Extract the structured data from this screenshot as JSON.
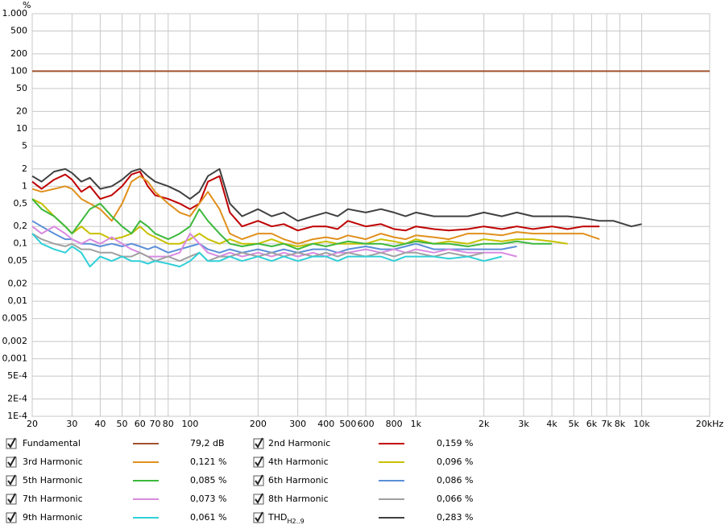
{
  "chart_data": {
    "type": "line",
    "xscale": "log",
    "yscale": "log",
    "grid": true,
    "y_label": "%",
    "xlim": [
      20,
      20000
    ],
    "ylim": [
      0.0001,
      1000
    ],
    "xticks": [
      20,
      30,
      40,
      50,
      60,
      70,
      80,
      100,
      200,
      300,
      400,
      500,
      600,
      800,
      {
        "value": 1000,
        "label": "1k"
      },
      {
        "value": 2000,
        "label": "2k"
      },
      {
        "value": 3000,
        "label": "3k"
      },
      {
        "value": 4000,
        "label": "4k"
      },
      {
        "value": 5000,
        "label": "5k"
      },
      {
        "value": 6000,
        "label": "6k"
      },
      {
        "value": 7000,
        "label": "7k"
      },
      {
        "value": 8000,
        "label": "8k"
      },
      {
        "value": 10000,
        "label": "10k"
      },
      {
        "value": 20000,
        "label": "20kHz"
      }
    ],
    "yticks": [
      {
        "value": 1000,
        "label": "1.000"
      },
      500,
      200,
      100,
      50,
      20,
      10,
      5,
      2,
      1,
      {
        "value": 0.5,
        "label": "0,5"
      },
      {
        "value": 0.2,
        "label": "0,2"
      },
      {
        "value": 0.1,
        "label": "0,1"
      },
      {
        "value": 0.05,
        "label": "0,05"
      },
      {
        "value": 0.02,
        "label": "0,02"
      },
      {
        "value": 0.01,
        "label": "0,01"
      },
      {
        "value": 0.005,
        "label": "0,005"
      },
      {
        "value": 0.002,
        "label": "0,002"
      },
      {
        "value": 0.001,
        "label": "0,001"
      },
      {
        "value": 0.0005,
        "label": "5E-4"
      },
      {
        "value": 0.0002,
        "label": "2E-4"
      },
      {
        "value": 0.0001,
        "label": "1E-4"
      }
    ],
    "x": [
      20,
      22,
      25,
      28,
      30,
      33,
      36,
      40,
      45,
      50,
      55,
      60,
      65,
      70,
      80,
      90,
      100,
      110,
      120,
      135,
      150,
      170,
      200,
      230,
      260,
      300,
      350,
      400,
      450,
      500,
      600,
      700,
      800,
      900,
      1000,
      1200,
      1400,
      1700,
      2000,
      2400,
      2800,
      3300,
      4000,
      4700,
      5500,
      6500,
      7500,
      9000,
      10000,
      20000
    ],
    "series": [
      {
        "name": "Fundamental",
        "color": "#a0522d",
        "legend_value": "79,2 dB",
        "values": [
          100,
          100,
          100,
          100,
          100,
          100,
          100,
          100,
          100,
          100,
          100,
          100,
          100,
          100,
          100,
          100,
          100,
          100,
          100,
          100,
          100,
          100,
          100,
          100,
          100,
          100,
          100,
          100,
          100,
          100,
          100,
          100,
          100,
          100,
          100,
          100,
          100,
          100,
          100,
          100,
          100,
          100,
          100,
          100,
          100,
          100,
          100,
          100,
          100,
          100
        ]
      },
      {
        "name": "2nd Harmonic",
        "color": "#c00000",
        "legend_value": "0,159 %",
        "values": [
          1.2,
          0.9,
          1.3,
          1.6,
          1.3,
          0.8,
          1.0,
          0.6,
          0.7,
          1.0,
          1.6,
          1.8,
          1.0,
          0.7,
          0.6,
          0.5,
          0.4,
          0.5,
          1.2,
          1.5,
          0.35,
          0.2,
          0.25,
          0.2,
          0.22,
          0.17,
          0.2,
          0.2,
          0.18,
          0.25,
          0.2,
          0.22,
          0.18,
          0.17,
          0.2,
          0.18,
          0.17,
          0.18,
          0.2,
          0.18,
          0.2,
          0.18,
          0.2,
          0.18,
          0.2,
          0.2,
          null,
          null,
          null,
          null
        ]
      },
      {
        "name": "3rd Harmonic",
        "color": "#e0901c",
        "legend_value": "0,121 %",
        "values": [
          0.9,
          0.8,
          0.9,
          1.0,
          0.9,
          0.6,
          0.5,
          0.4,
          0.25,
          0.5,
          1.2,
          1.5,
          1.2,
          0.8,
          0.5,
          0.35,
          0.3,
          0.5,
          0.8,
          0.4,
          0.15,
          0.12,
          0.15,
          0.15,
          0.12,
          0.1,
          0.12,
          0.13,
          0.12,
          0.14,
          0.12,
          0.15,
          0.13,
          0.12,
          0.14,
          0.13,
          0.12,
          0.15,
          0.15,
          0.14,
          0.16,
          0.15,
          0.15,
          0.15,
          0.15,
          0.12,
          null,
          null,
          null,
          null
        ]
      },
      {
        "name": "4th Harmonic",
        "color": "#c8c000",
        "legend_value": "0,096 %",
        "values": [
          0.6,
          0.5,
          0.3,
          0.2,
          0.15,
          0.2,
          0.15,
          0.15,
          0.12,
          0.13,
          0.15,
          0.2,
          0.15,
          0.13,
          0.1,
          0.1,
          0.12,
          0.15,
          0.12,
          0.1,
          0.12,
          0.1,
          0.1,
          0.12,
          0.1,
          0.09,
          0.1,
          0.11,
          0.1,
          0.1,
          0.1,
          0.12,
          0.11,
          0.1,
          0.12,
          0.1,
          0.11,
          0.1,
          0.12,
          0.11,
          0.12,
          0.12,
          0.11,
          0.1,
          null,
          null,
          null,
          null,
          null,
          null
        ]
      },
      {
        "name": "5th Harmonic",
        "color": "#3cb83c",
        "legend_value": "0,085 %",
        "values": [
          0.6,
          0.4,
          0.3,
          0.2,
          0.15,
          0.25,
          0.4,
          0.5,
          0.3,
          0.2,
          0.15,
          0.25,
          0.2,
          0.15,
          0.12,
          0.15,
          0.2,
          0.4,
          0.25,
          0.15,
          0.1,
          0.09,
          0.1,
          0.09,
          0.1,
          0.08,
          0.1,
          0.09,
          0.1,
          0.11,
          0.1,
          0.1,
          0.09,
          0.1,
          0.11,
          0.1,
          0.1,
          0.09,
          0.1,
          0.1,
          0.11,
          0.1,
          0.1,
          null,
          null,
          null,
          null,
          null,
          null,
          null
        ]
      },
      {
        "name": "6th Harmonic",
        "color": "#5b8fd8",
        "legend_value": "0,086 %",
        "values": [
          0.25,
          0.2,
          0.15,
          0.12,
          0.12,
          0.1,
          0.1,
          0.09,
          0.1,
          0.09,
          0.1,
          0.09,
          0.08,
          0.09,
          0.07,
          0.08,
          0.09,
          0.1,
          0.08,
          0.07,
          0.08,
          0.07,
          0.08,
          0.07,
          0.08,
          0.07,
          0.08,
          0.08,
          0.07,
          0.08,
          0.09,
          0.08,
          0.08,
          0.09,
          0.1,
          0.08,
          0.08,
          0.08,
          0.08,
          0.08,
          0.09,
          null,
          null,
          null,
          null,
          null,
          null,
          null,
          null,
          null
        ]
      },
      {
        "name": "7th Harmonic",
        "color": "#d88ae0",
        "legend_value": "0,073 %",
        "values": [
          0.2,
          0.15,
          0.2,
          0.15,
          0.12,
          0.1,
          0.12,
          0.1,
          0.13,
          0.1,
          0.08,
          0.07,
          0.06,
          0.06,
          0.06,
          0.07,
          0.15,
          0.1,
          0.07,
          0.06,
          0.07,
          0.06,
          0.07,
          0.06,
          0.07,
          0.06,
          0.07,
          0.06,
          0.07,
          0.07,
          0.08,
          0.07,
          0.08,
          0.07,
          0.08,
          0.07,
          0.08,
          0.07,
          0.07,
          0.07,
          0.06,
          null,
          null,
          null,
          null,
          null,
          null,
          null,
          null,
          null
        ]
      },
      {
        "name": "8th Harmonic",
        "color": "#a0a0a0",
        "legend_value": "0,066 %",
        "values": [
          0.15,
          0.12,
          0.1,
          0.09,
          0.1,
          0.08,
          0.08,
          0.07,
          0.07,
          0.06,
          0.06,
          0.07,
          0.06,
          0.05,
          0.06,
          0.05,
          0.06,
          0.07,
          0.05,
          0.06,
          0.06,
          0.07,
          0.06,
          0.07,
          0.06,
          0.07,
          0.06,
          0.07,
          0.06,
          0.07,
          0.06,
          0.07,
          0.06,
          0.07,
          0.07,
          0.06,
          0.07,
          0.06,
          0.07,
          null,
          null,
          null,
          null,
          null,
          null,
          null,
          null,
          null,
          null,
          null
        ]
      },
      {
        "name": "9th Harmonic",
        "color": "#30d0d8",
        "legend_value": "0,061 %",
        "values": [
          0.15,
          0.1,
          0.08,
          0.07,
          0.09,
          0.07,
          0.04,
          0.06,
          0.05,
          0.06,
          0.05,
          0.05,
          0.045,
          0.05,
          0.045,
          0.04,
          0.05,
          0.07,
          0.05,
          0.05,
          0.06,
          0.05,
          0.06,
          0.05,
          0.06,
          0.05,
          0.06,
          0.06,
          0.05,
          0.06,
          0.06,
          0.06,
          0.05,
          0.06,
          0.06,
          0.06,
          0.055,
          0.06,
          0.05,
          0.06,
          null,
          null,
          null,
          null,
          null,
          null,
          null,
          null,
          null,
          null
        ]
      },
      {
        "name": "THD",
        "subscript": "H2..9",
        "color": "#404040",
        "legend_value": "0,283 %",
        "values": [
          1.5,
          1.2,
          1.8,
          2.0,
          1.7,
          1.2,
          1.4,
          0.9,
          1.0,
          1.3,
          1.8,
          2.0,
          1.5,
          1.2,
          1.0,
          0.8,
          0.6,
          0.8,
          1.5,
          2.0,
          0.5,
          0.3,
          0.4,
          0.3,
          0.35,
          0.25,
          0.3,
          0.35,
          0.3,
          0.4,
          0.35,
          0.4,
          0.35,
          0.3,
          0.35,
          0.3,
          0.3,
          0.3,
          0.35,
          0.3,
          0.35,
          0.3,
          0.3,
          0.3,
          0.28,
          0.25,
          0.25,
          0.2,
          0.22,
          null
        ]
      }
    ]
  }
}
